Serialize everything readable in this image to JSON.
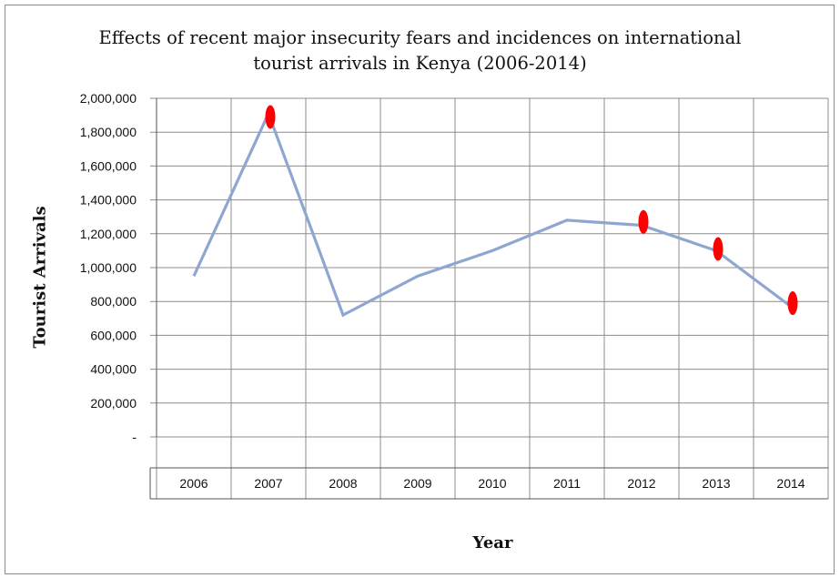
{
  "chart_data": {
    "type": "line",
    "title": "Effects of recent major insecurity  fears and incidences on international tourist arrivals in Kenya (2006-2014)",
    "title_lines": [
      "Effects of recent major insecurity  fears and incidences on international",
      "tourist arrivals in Kenya (2006-2014)"
    ],
    "xlabel": "Year",
    "ylabel": "Tourist Arrivals",
    "categories": [
      "2006",
      "2007",
      "2008",
      "2009",
      "2010",
      "2011",
      "2012",
      "2013",
      "2014"
    ],
    "values": [
      950000,
      1910000,
      720000,
      950000,
      1100000,
      1280000,
      1250000,
      1100000,
      770000
    ],
    "ylim": [
      0,
      2000000
    ],
    "yticks": [
      {
        "value": 0,
        "label": "-"
      },
      {
        "value": 200000,
        "label": "200,000"
      },
      {
        "value": 400000,
        "label": "400,000"
      },
      {
        "value": 600000,
        "label": "600,000"
      },
      {
        "value": 800000,
        "label": "800,000"
      },
      {
        "value": 1000000,
        "label": "1,000,000"
      },
      {
        "value": 1200000,
        "label": "1,200,000"
      },
      {
        "value": 1400000,
        "label": "1,400,000"
      },
      {
        "value": 1600000,
        "label": "1,600,000"
      },
      {
        "value": 1800000,
        "label": "1,800,000"
      },
      {
        "value": 2000000,
        "label": "2,000,000"
      }
    ],
    "markers": [
      {
        "category": "2007",
        "value": 1890000
      },
      {
        "category": "2012",
        "value": 1270000
      },
      {
        "category": "2013",
        "value": 1110000
      },
      {
        "category": "2014",
        "value": 790000
      }
    ],
    "grid": true,
    "line_color": "#8ea7d0",
    "marker_color": "#ff0000"
  }
}
